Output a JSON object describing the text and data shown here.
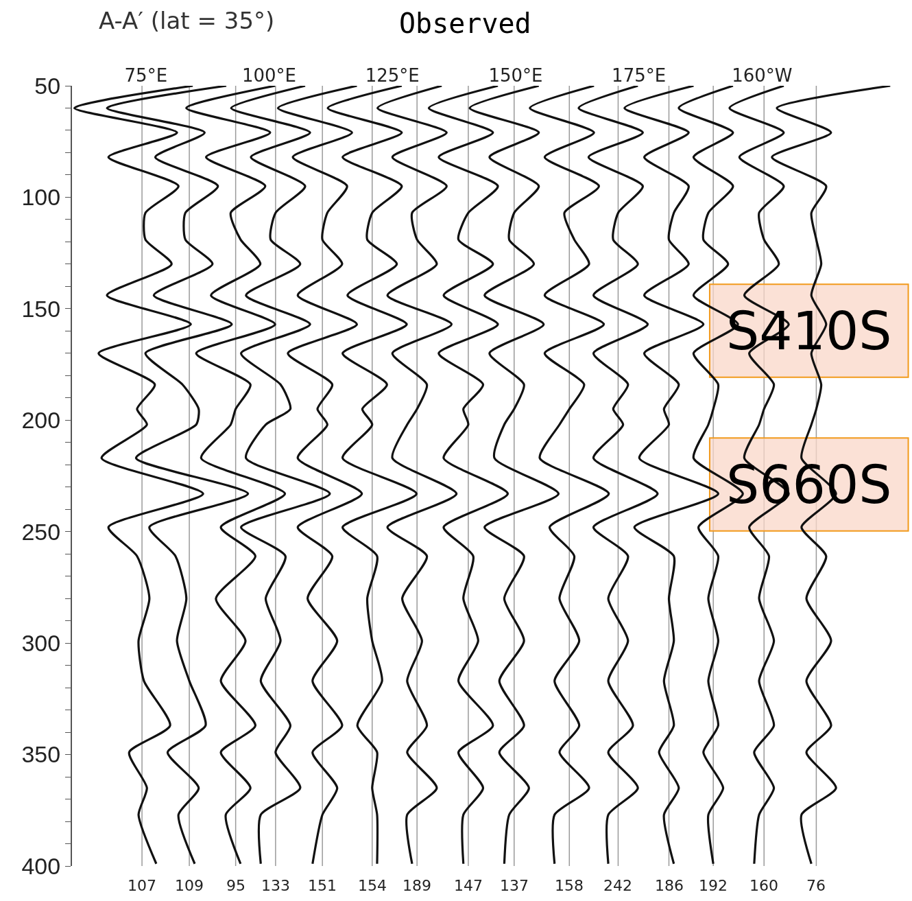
{
  "chart_data": {
    "type": "line",
    "title": "Observed",
    "subtitle": "A-A′ (lat = 35°)",
    "xlim": [
      60,
      230
    ],
    "ylim": [
      400,
      50
    ],
    "xticks": [
      {
        "value": 75,
        "label": "75°E"
      },
      {
        "value": 100,
        "label": "100°E"
      },
      {
        "value": 125,
        "label": "125°E"
      },
      {
        "value": 150,
        "label": "150°E"
      },
      {
        "value": 175,
        "label": "175°E"
      },
      {
        "value": 200,
        "label": "160°W"
      }
    ],
    "ref_lines": [
      {
        "axis": "x",
        "value": 74.2,
        "color": "#9a9a9a"
      },
      {
        "axis": "x",
        "value": 83.8,
        "color": "#9a9a9a"
      },
      {
        "axis": "x",
        "value": 93.2,
        "color": "#9a9a9a"
      },
      {
        "axis": "x",
        "value": 101.3,
        "color": "#9a9a9a"
      },
      {
        "axis": "x",
        "value": 110.8,
        "color": "#9a9a9a"
      },
      {
        "axis": "x",
        "value": 120.9,
        "color": "#9a9a9a"
      },
      {
        "axis": "x",
        "value": 130,
        "color": "#9a9a9a"
      },
      {
        "axis": "x",
        "value": 140.4,
        "color": "#9a9a9a"
      },
      {
        "axis": "x",
        "value": 149.7,
        "color": "#9a9a9a"
      },
      {
        "axis": "x",
        "value": 160.9,
        "color": "#9a9a9a"
      },
      {
        "axis": "x",
        "value": 170.8,
        "color": "#9a9a9a"
      },
      {
        "axis": "x",
        "value": 181.1,
        "color": "#9a9a9a"
      },
      {
        "axis": "x",
        "value": 190.1,
        "color": "#9a9a9a"
      },
      {
        "axis": "x",
        "value": 200.4,
        "color": "#9a9a9a"
      },
      {
        "axis": "x",
        "value": 211,
        "color": "#9a9a9a"
      }
    ],
    "yticks": [
      50,
      {
        "value": 60,
        "label": null
      },
      {
        "value": 70,
        "label": null
      },
      {
        "value": 80,
        "label": null
      },
      {
        "value": 90,
        "label": null
      },
      100,
      {
        "value": 110,
        "label": null
      },
      {
        "value": 120,
        "label": null
      },
      {
        "value": 130,
        "label": null
      },
      {
        "value": 140,
        "label": null
      },
      150,
      {
        "value": 160,
        "label": null
      },
      {
        "value": 170,
        "label": null
      },
      {
        "value": 180,
        "label": null
      },
      {
        "value": 190,
        "label": null
      },
      200,
      {
        "value": 210,
        "label": null
      },
      {
        "value": 220,
        "label": null
      },
      {
        "value": 230,
        "label": null
      },
      {
        "value": 240,
        "label": null
      },
      250,
      {
        "value": 260,
        "label": null
      },
      {
        "value": 270,
        "label": null
      },
      {
        "value": 280,
        "label": null
      },
      {
        "value": 290,
        "label": null
      },
      300,
      {
        "value": 310,
        "label": null
      },
      {
        "value": 320,
        "label": null
      },
      {
        "value": 330,
        "label": null
      },
      {
        "value": 340,
        "label": null
      },
      350,
      {
        "value": 360,
        "label": null
      },
      {
        "value": 370,
        "label": null
      },
      {
        "value": 380,
        "label": null
      },
      {
        "value": 390,
        "label": null
      },
      400
    ],
    "legend": false,
    "annotations": [
      "S410S",
      "S660S"
    ],
    "series": [
      {
        "name": "107",
        "color": "#111111",
        "x": [
          84.5,
          60.5,
          81.3,
          67.4,
          81.6,
          74.9,
          74.9,
          80.2,
          67.1,
          84.1,
          65.4,
          76.8,
          73.2,
          75.2,
          66,
          86.6,
          67.4,
          73.2,
          75.7,
          73.5,
          74.6,
          79.9,
          71.6,
          75.2,
          73.5,
          77.1
        ],
        "values": [
          50,
          60,
          71,
          82,
          95,
          107,
          119,
          130,
          144,
          157,
          170,
          184,
          195,
          202,
          217,
          233,
          248,
          261,
          280,
          299,
          317,
          337,
          349,
          365,
          377,
          399
        ]
      },
      {
        "name": "109",
        "color": "#111111",
        "x": [
          91.3,
          67.1,
          86.9,
          76.9,
          89.6,
          83,
          83,
          88.5,
          76.6,
          92.4,
          74.9,
          82.4,
          85.7,
          85.2,
          73,
          95.7,
          75.7,
          81,
          83.2,
          81.3,
          83.8,
          87.1,
          79.4,
          85.7,
          81.6,
          84.9
        ],
        "values": [
          50,
          60,
          71,
          82,
          95,
          107,
          119,
          130,
          144,
          157,
          170,
          184,
          195,
          202,
          217,
          233,
          248,
          261,
          280,
          299,
          317,
          337,
          349,
          365,
          377,
          399
        ]
      },
      {
        "name": "95",
        "color": "#111111",
        "x": [
          101.2,
          83.2,
          100.2,
          87.2,
          99.2,
          92.2,
          94.2,
          98.2,
          88.2,
          101.2,
          85.2,
          96.2,
          93.2,
          92.2,
          86.2,
          103.2,
          90.2,
          97.2,
          89.2,
          95.2,
          90.2,
          97.2,
          90.2,
          96.2,
          91.2,
          94.2
        ],
        "values": [
          50,
          60,
          71,
          82,
          95,
          107,
          119,
          130,
          144,
          157,
          170,
          184,
          195,
          202,
          217,
          233,
          248,
          261,
          280,
          299,
          317,
          337,
          349,
          365,
          377,
          399
        ]
      },
      {
        "name": "133",
        "color": "#111111",
        "x": [
          107.3,
          92.3,
          108.3,
          96.3,
          107.3,
          101.3,
          100.3,
          106.3,
          95.3,
          108.3,
          94.3,
          102.3,
          104.3,
          99.3,
          95.3,
          112.3,
          94.3,
          103.3,
          99.3,
          102.3,
          98.3,
          104.3,
          101.3,
          106.3,
          98.3,
          98.3
        ],
        "values": [
          50,
          60,
          71,
          82,
          95,
          107,
          119,
          130,
          144,
          157,
          170,
          184,
          195,
          202,
          217,
          233,
          248,
          261,
          280,
          299,
          317,
          337,
          349,
          365,
          377,
          399
        ]
      },
      {
        "name": "151",
        "color": "#111111",
        "x": [
          117.8,
          101.8,
          116.8,
          104.8,
          115.8,
          111.8,
          110.8,
          114.8,
          105.8,
          117.8,
          103.8,
          112.8,
          109.8,
          111.8,
          105.8,
          118.8,
          105.8,
          112.8,
          107.8,
          113.8,
          108.8,
          114.8,
          108.8,
          113.8,
          110.8,
          108.8
        ],
        "values": [
          50,
          60,
          71,
          82,
          95,
          107,
          119,
          130,
          144,
          157,
          170,
          184,
          195,
          202,
          217,
          233,
          248,
          261,
          280,
          299,
          317,
          337,
          349,
          365,
          377,
          399
        ]
      },
      {
        "name": "154",
        "color": "#111111",
        "x": [
          126.9,
          111.9,
          126.9,
          114.9,
          126.9,
          120.9,
          119.9,
          125.9,
          115.9,
          127.9,
          114.9,
          123.9,
          118.9,
          120.9,
          114.9,
          129.9,
          114.9,
          121.9,
          119.9,
          120.9,
          122.9,
          117.9,
          121.9,
          120.9,
          121.9,
          121.9
        ],
        "values": [
          50,
          60,
          71,
          82,
          95,
          107,
          119,
          130,
          144,
          157,
          170,
          184,
          195,
          202,
          217,
          233,
          248,
          261,
          280,
          299,
          317,
          337,
          349,
          365,
          377,
          399
        ]
      },
      {
        "name": "189",
        "color": "#111111",
        "x": [
          135,
          122,
          136,
          125,
          136,
          129,
          130,
          134,
          124,
          137,
          125,
          132,
          130,
          128,
          125,
          138,
          124,
          132,
          127,
          131,
          128,
          132,
          128,
          134,
          128,
          129
        ],
        "values": [
          50,
          60,
          71,
          82,
          95,
          107,
          119,
          130,
          144,
          157,
          170,
          184,
          195,
          202,
          217,
          233,
          248,
          261,
          280,
          299,
          317,
          337,
          349,
          365,
          377,
          399
        ]
      },
      {
        "name": "147",
        "color": "#111111",
        "x": [
          146.4,
          132.4,
          145.4,
          134.4,
          146.4,
          140.4,
          138.4,
          145.4,
          135.4,
          146.4,
          134.4,
          143.4,
          139.4,
          140.4,
          135.4,
          148.4,
          135.4,
          141.4,
          139.4,
          142.4,
          138.4,
          145.4,
          138.4,
          143.4,
          139.4,
          139.4
        ],
        "values": [
          50,
          60,
          71,
          82,
          95,
          107,
          119,
          130,
          144,
          157,
          170,
          184,
          195,
          202,
          217,
          233,
          248,
          261,
          280,
          299,
          317,
          337,
          349,
          365,
          377,
          399
        ]
      },
      {
        "name": "137",
        "color": "#111111",
        "x": [
          154.7,
          140.7,
          154.7,
          144.7,
          154.7,
          149.7,
          148.7,
          153.7,
          143.7,
          155.7,
          144.7,
          151.7,
          149.7,
          147.7,
          145.7,
          158.7,
          143.7,
          151.7,
          147.7,
          151.7,
          146.7,
          151.7,
          146.7,
          152.7,
          148.7,
          147.7
        ],
        "values": [
          50,
          60,
          71,
          82,
          95,
          107,
          119,
          130,
          144,
          157,
          170,
          184,
          195,
          202,
          217,
          233,
          248,
          261,
          280,
          299,
          317,
          337,
          349,
          365,
          377,
          399
        ]
      },
      {
        "name": "158",
        "color": "#111111",
        "x": [
          165.9,
          152.9,
          165.9,
          155.9,
          166.9,
          159.9,
          161.9,
          164.9,
          155.9,
          167.9,
          155.9,
          163.9,
          160.9,
          158.9,
          154.9,
          168.9,
          156.9,
          161.9,
          158.9,
          162.9,
          157.9,
          162.9,
          158.9,
          164.9,
          157.9,
          157.9
        ],
        "values": [
          50,
          60,
          71,
          82,
          95,
          107,
          119,
          130,
          144,
          157,
          170,
          184,
          195,
          202,
          217,
          233,
          248,
          261,
          280,
          299,
          317,
          337,
          349,
          365,
          377,
          399
        ]
      },
      {
        "name": "242",
        "color": "#111111",
        "x": [
          174.8,
          162.8,
          175.8,
          164.8,
          175.8,
          170.8,
          169.8,
          174.8,
          165.8,
          176.8,
          165.8,
          172.8,
          169.8,
          171.8,
          165.8,
          178.8,
          165.8,
          172.8,
          168.8,
          172.8,
          168.8,
          173.8,
          168.8,
          174.8,
          168.8,
          168.8
        ],
        "values": [
          50,
          60,
          71,
          82,
          95,
          107,
          119,
          130,
          144,
          157,
          170,
          184,
          195,
          202,
          217,
          233,
          248,
          261,
          280,
          299,
          317,
          337,
          349,
          365,
          377,
          399
        ]
      },
      {
        "name": "186",
        "color": "#111111",
        "x": [
          186.1,
          172.1,
          185.1,
          176.1,
          185.1,
          182.1,
          181.1,
          185.1,
          176.1,
          188.1,
          176.1,
          183.1,
          180.1,
          181.1,
          175.1,
          191.1,
          174.1,
          182.1,
          181.1,
          182.1,
          180.1,
          182.1,
          179.1,
          183.1,
          180.1,
          182.1
        ],
        "values": [
          50,
          60,
          71,
          82,
          95,
          107,
          119,
          130,
          144,
          157,
          170,
          184,
          195,
          202,
          217,
          233,
          248,
          261,
          280,
          299,
          317,
          337,
          349,
          365,
          377,
          399
        ]
      },
      {
        "name": "192",
        "color": "#111111",
        "x": [
          194.1,
          183.1,
          194.1,
          186.1,
          194.1,
          189.1,
          188.1,
          193.1,
          186.1,
          195.1,
          186.1,
          191.1,
          190.1,
          189.1,
          186.1,
          196.1,
          187.1,
          191.1,
          189.1,
          191.1,
          189.1,
          191.1,
          188.1,
          192.1,
          189.1,
          190.1
        ],
        "values": [
          50,
          60,
          71,
          82,
          95,
          107,
          119,
          130,
          144,
          157,
          170,
          184,
          195,
          202,
          217,
          233,
          248,
          261,
          280,
          299,
          317,
          337,
          349,
          365,
          377,
          399
        ]
      },
      {
        "name": "160",
        "color": "#111111",
        "x": [
          204.4,
          193.4,
          204.4,
          195.4,
          204.4,
          199.4,
          200.4,
          203.4,
          196.4,
          205.4,
          197.4,
          202.4,
          200.4,
          199.4,
          196.4,
          205.4,
          197.4,
          201.4,
          199.4,
          202.4,
          199.4,
          202.4,
          198.4,
          202.4,
          199.4,
          198.4
        ],
        "values": [
          50,
          60,
          71,
          82,
          95,
          107,
          119,
          130,
          144,
          157,
          170,
          184,
          195,
          202,
          217,
          233,
          248,
          261,
          280,
          299,
          317,
          337,
          349,
          365,
          377,
          399
        ]
      },
      {
        "name": "76",
        "color": "#111111",
        "x": [
          226,
          203,
          214,
          202,
          213,
          210,
          211,
          212,
          210,
          213,
          210,
          212,
          211,
          210,
          208,
          215,
          208,
          213,
          209,
          214,
          209,
          214,
          209,
          215,
          208,
          210
        ],
        "values": [
          50,
          60,
          71,
          82,
          95,
          107,
          119,
          130,
          144,
          157,
          170,
          184,
          195,
          202,
          217,
          233,
          248,
          261,
          280,
          299,
          317,
          337,
          349,
          365,
          377,
          399
        ]
      }
    ]
  }
}
